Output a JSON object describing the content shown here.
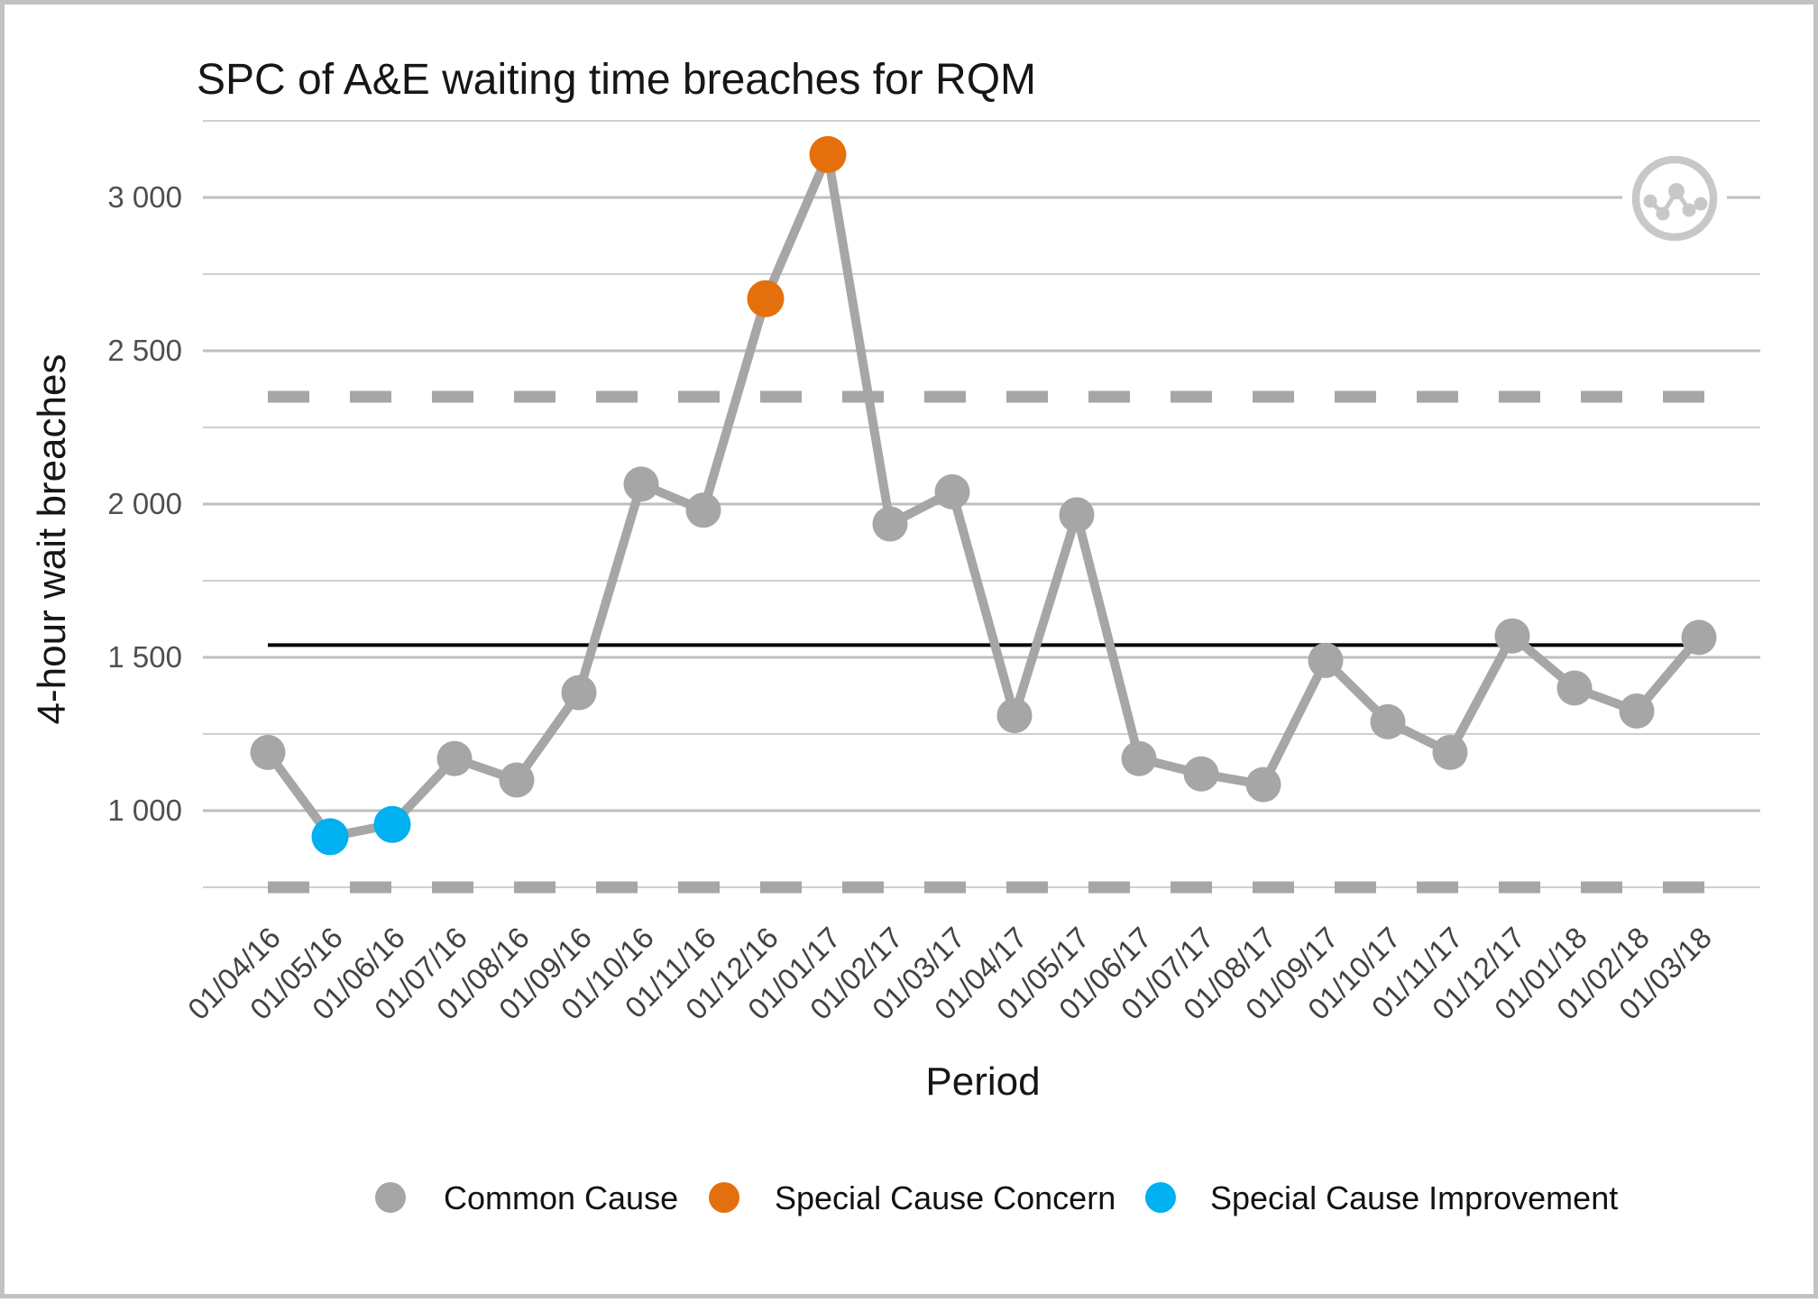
{
  "frame": {
    "border_color": "#c2c2c2",
    "background": "#ffffff"
  },
  "chart_data": {
    "type": "line",
    "title": "SPC of A&E waiting time breaches for RQM",
    "xlabel": "Period",
    "ylabel": "4-hour wait breaches",
    "x": [
      "01/04/16",
      "01/05/16",
      "01/06/16",
      "01/07/16",
      "01/08/16",
      "01/09/16",
      "01/10/16",
      "01/11/16",
      "01/12/16",
      "01/01/17",
      "01/02/17",
      "01/03/17",
      "01/04/17",
      "01/05/17",
      "01/06/17",
      "01/07/17",
      "01/08/17",
      "01/09/17",
      "01/10/17",
      "01/11/17",
      "01/12/17",
      "01/01/18",
      "01/02/18",
      "01/03/18"
    ],
    "series": [
      {
        "name": "4-hour wait breaches",
        "values": [
          1190,
          915,
          955,
          1170,
          1100,
          1385,
          2065,
          1980,
          2670,
          3140,
          1935,
          2040,
          1310,
          1965,
          1170,
          1120,
          1085,
          1490,
          1290,
          1190,
          1570,
          1400,
          1325,
          1565
        ]
      }
    ],
    "point_categories": [
      "common",
      "improvement",
      "improvement",
      "common",
      "common",
      "common",
      "common",
      "common",
      "concern",
      "concern",
      "common",
      "common",
      "common",
      "common",
      "common",
      "common",
      "common",
      "common",
      "common",
      "common",
      "common",
      "common",
      "common",
      "common"
    ],
    "mean": 1540,
    "ucl": 2350,
    "lcl": 750,
    "ylim": [
      620,
      3330
    ],
    "yticks_major": [
      {
        "value": 1000,
        "label": "1 000"
      },
      {
        "value": 1500,
        "label": "1 500"
      },
      {
        "value": 2000,
        "label": "2 000"
      },
      {
        "value": 2500,
        "label": "2 500"
      },
      {
        "value": 3000,
        "label": "3 000"
      }
    ],
    "yticks_minor": [
      750,
      1250,
      1750,
      2250,
      2750,
      3250
    ],
    "grid": true,
    "legend_position": "bottom"
  },
  "legend": {
    "items": [
      {
        "key": "common",
        "label": "Common Cause",
        "color": "#A6A6A6"
      },
      {
        "key": "concern",
        "label": "Special Cause Concern",
        "color": "#E4700D"
      },
      {
        "key": "improvement",
        "label": "Special Cause Improvement",
        "color": "#00B0F0"
      }
    ]
  },
  "colors": {
    "series_line": "#A6A6A6",
    "mean_line": "#000000",
    "limit_line": "#A6A6A6",
    "grid_major": "#bfbfbf",
    "grid_minor": "#cfcfcf",
    "icon": "#c8c8c8"
  },
  "icon": {
    "name": "spc-line-chart-icon"
  }
}
